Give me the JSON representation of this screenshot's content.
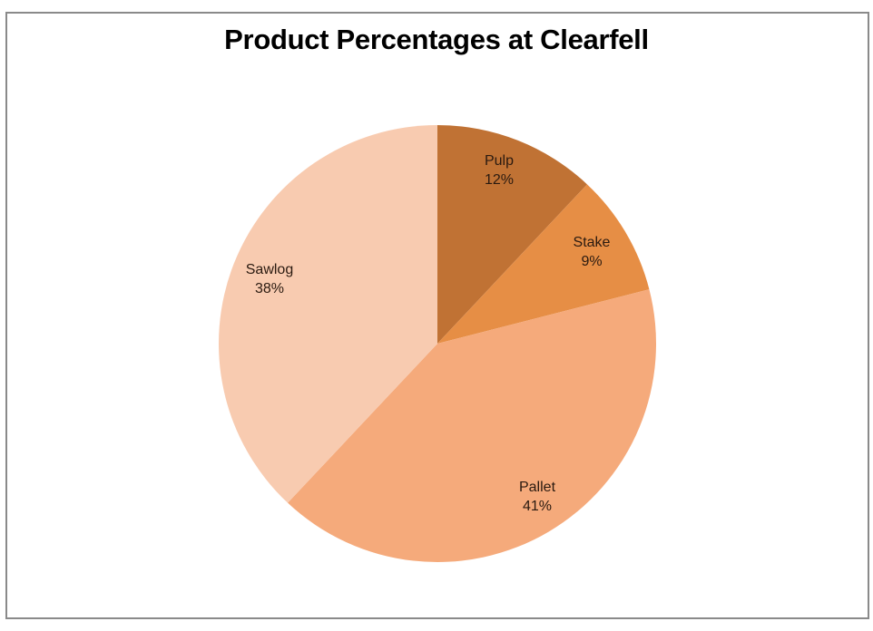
{
  "chart_data": {
    "type": "pie",
    "title": "Product Percentages at Clearfell",
    "categories": [
      "Pulp",
      "Stake",
      "Pallet",
      "Sawlog"
    ],
    "values": [
      12,
      9,
      41,
      38
    ],
    "labels": [
      "12%",
      "9%",
      "41%",
      "38%"
    ],
    "colors": [
      "#C07234",
      "#E68E45",
      "#F5AA7B",
      "#F8CBB0"
    ],
    "start_angle_deg": 0,
    "direction": "clockwise",
    "legend": "none",
    "data_labels": "category and percentage inside slices"
  }
}
